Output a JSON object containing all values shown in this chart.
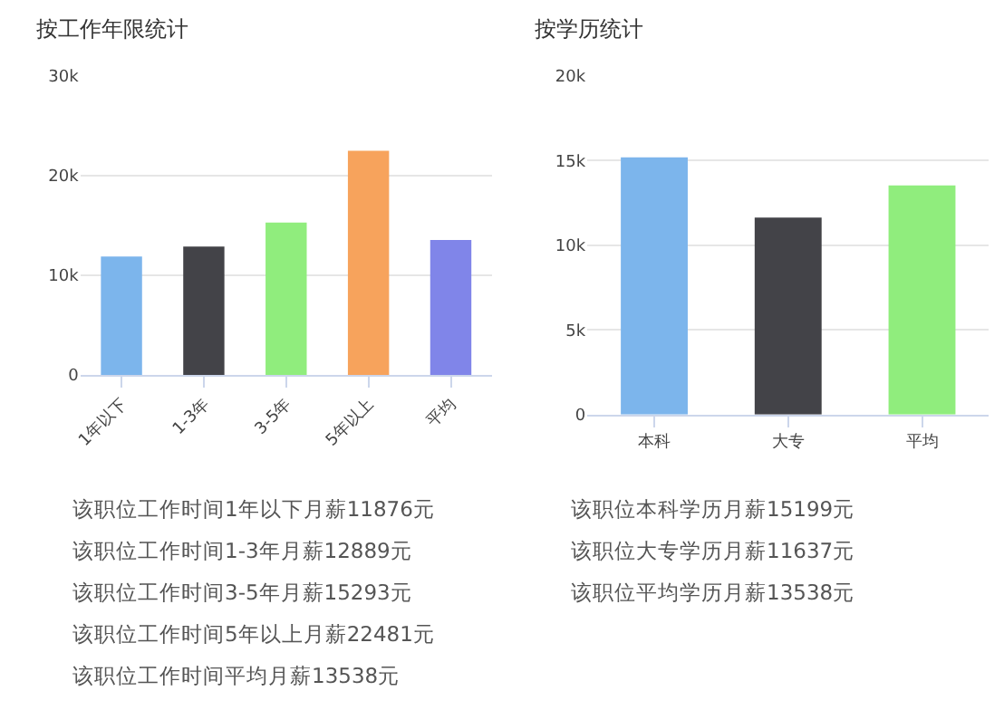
{
  "chart_data": [
    {
      "type": "bar",
      "title": "按工作年限统计",
      "categories": [
        "1年以下",
        "1-3年",
        "3-5年",
        "5年以上",
        "平均"
      ],
      "values": [
        11876,
        12889,
        15293,
        22481,
        13538
      ],
      "colors": [
        "#7cb5ec",
        "#434348",
        "#90ed7d",
        "#f7a35c",
        "#8085e9"
      ],
      "ylim": [
        0,
        30000
      ],
      "yticks": [
        {
          "value": 0,
          "label": "0"
        },
        {
          "value": 10000,
          "label": "10k"
        },
        {
          "value": 20000,
          "label": "20k"
        },
        {
          "value": 30000,
          "label": "30k"
        }
      ],
      "grid": "y",
      "legend": false,
      "annotations": [
        "该职位工作时间1年以下月薪11876元",
        "该职位工作时间1-3年月薪12889元",
        "该职位工作时间3-5年月薪15293元",
        "该职位工作时间5年以上月薪22481元",
        "该职位工作时间平均月薪13538元"
      ]
    },
    {
      "type": "bar",
      "title": "按学历统计",
      "categories": [
        "本科",
        "大专",
        "平均"
      ],
      "values": [
        15199,
        11637,
        13538
      ],
      "colors": [
        "#7cb5ec",
        "#434348",
        "#90ed7d"
      ],
      "ylim": [
        0,
        20000
      ],
      "yticks": [
        {
          "value": 0,
          "label": "0"
        },
        {
          "value": 5000,
          "label": "5k"
        },
        {
          "value": 10000,
          "label": "10k"
        },
        {
          "value": 15000,
          "label": "15k"
        },
        {
          "value": 20000,
          "label": "20k"
        }
      ],
      "grid": "y",
      "legend": false,
      "annotations": [
        "该职位本科学历月薪15199元",
        "该职位大专学历月薪11637元",
        "该职位平均学历月薪13538元"
      ]
    }
  ]
}
